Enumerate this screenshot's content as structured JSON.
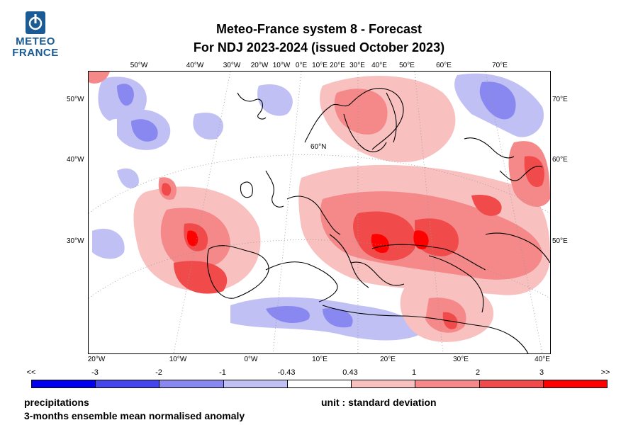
{
  "logo": {
    "line1": "METEO",
    "line2": "FRANCE",
    "color": "#1a5b95"
  },
  "title": {
    "line1": "Meteo-France system 8  -  Forecast",
    "line2": "For NDJ 2023-2024      (issued October 2023)"
  },
  "map": {
    "top_labels": [
      "50°W",
      "40°W",
      "30°W",
      "20°W",
      "10°W",
      "0°E",
      "10°E",
      "20°E",
      "30°E",
      "40°E",
      "50°E",
      "60°E",
      "70°E"
    ],
    "bottom_labels": [
      "20°W",
      "10°W",
      "0°W",
      "10°E",
      "20°E",
      "30°E",
      "40°E"
    ],
    "left_labels": [
      "50°W",
      "40°W",
      "30°W"
    ],
    "right_labels": [
      "70°E",
      "60°E",
      "50°E"
    ],
    "inner_label": "60°N"
  },
  "colorbar": {
    "labels": [
      "<<",
      "-3",
      "-2",
      "-1",
      "-0.43",
      "0.43",
      "1",
      "2",
      "3",
      ">>"
    ],
    "colors": [
      "#0000ee",
      "#4545ee",
      "#8888f0",
      "#c0c0f5",
      "#ffffff",
      "#f9c0c0",
      "#f58888",
      "#f04a4a",
      "#ff0000"
    ]
  },
  "footer": {
    "variable": "precipitations",
    "unit": "unit : standard deviation",
    "description": "3-months ensemble mean normalised anomaly"
  }
}
